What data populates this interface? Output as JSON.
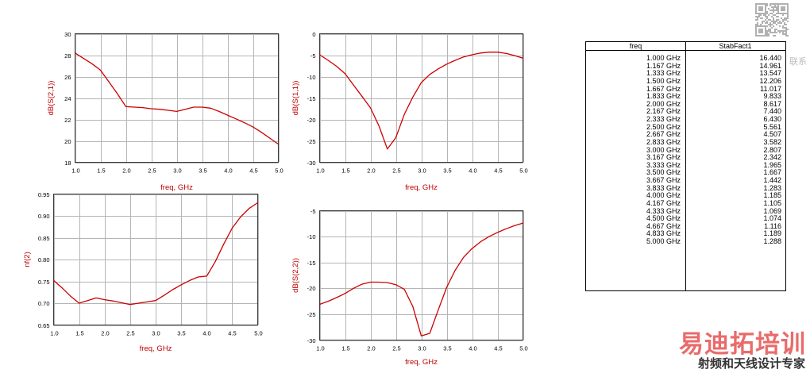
{
  "colors": {
    "trace": "#cc0000",
    "axis_label": "#c00000",
    "brand": "#e23a3a",
    "tagline": "#333333"
  },
  "chart_data": [
    {
      "type": "line",
      "xlabel": "freq, GHz",
      "ylabel": "dB(S(2,1))",
      "xlim": [
        1.0,
        5.0
      ],
      "ylim": [
        18,
        30
      ],
      "xticks": [
        "1.0",
        "1.5",
        "2.0",
        "2.5",
        "3.0",
        "3.5",
        "4.0",
        "4.5",
        "5.0"
      ],
      "yticks": [
        "30",
        "28",
        "26",
        "24",
        "22",
        "20",
        "18"
      ],
      "grid": true,
      "x": [
        1.0,
        1.167,
        1.333,
        1.5,
        1.667,
        1.833,
        2.0,
        2.167,
        2.333,
        2.5,
        2.667,
        2.833,
        3.0,
        3.167,
        3.333,
        3.5,
        3.667,
        3.833,
        4.0,
        4.167,
        4.333,
        4.5,
        4.667,
        4.833,
        5.0
      ],
      "y": [
        28.2,
        27.7,
        27.2,
        26.6,
        25.5,
        24.4,
        23.2,
        23.15,
        23.1,
        23.0,
        22.95,
        22.85,
        22.75,
        22.95,
        23.15,
        23.15,
        23.05,
        22.75,
        22.4,
        22.05,
        21.7,
        21.3,
        20.8,
        20.25,
        19.7
      ]
    },
    {
      "type": "line",
      "xlabel": "freq, GHz",
      "ylabel": "dB(S(1,1))",
      "xlim": [
        1.0,
        5.0
      ],
      "ylim": [
        -30,
        0
      ],
      "xticks": [
        "1.0",
        "1.5",
        "2.0",
        "2.5",
        "3.0",
        "3.5",
        "4.0",
        "4.5",
        "5.0"
      ],
      "yticks": [
        "0",
        "-5",
        "-10",
        "-15",
        "-20",
        "-25",
        "-30"
      ],
      "grid": true,
      "x": [
        1.0,
        1.167,
        1.333,
        1.5,
        1.667,
        1.833,
        2.0,
        2.167,
        2.333,
        2.5,
        2.667,
        2.833,
        3.0,
        3.167,
        3.333,
        3.5,
        3.667,
        3.833,
        4.0,
        4.167,
        4.333,
        4.5,
        4.667,
        4.833,
        5.0
      ],
      "y": [
        -4.9,
        -6.2,
        -7.6,
        -9.3,
        -12.0,
        -14.6,
        -17.3,
        -21.5,
        -26.9,
        -24.2,
        -18.8,
        -14.8,
        -11.4,
        -9.5,
        -8.2,
        -7.1,
        -6.2,
        -5.4,
        -4.9,
        -4.5,
        -4.3,
        -4.3,
        -4.6,
        -5.1,
        -5.7
      ]
    },
    {
      "type": "line",
      "xlabel": "freq, GHz",
      "ylabel": "nf(2)",
      "xlim": [
        1.0,
        5.0
      ],
      "ylim": [
        0.65,
        0.95
      ],
      "xticks": [
        "1.0",
        "1.5",
        "2.0",
        "2.5",
        "3.0",
        "3.5",
        "4.0",
        "4.5",
        "5.0"
      ],
      "yticks": [
        "0.95",
        "0.90",
        "0.85",
        "0.80",
        "0.75",
        "0.70",
        "0.65"
      ],
      "grid": true,
      "x": [
        1.0,
        1.167,
        1.333,
        1.5,
        1.667,
        1.833,
        2.0,
        2.167,
        2.333,
        2.5,
        2.667,
        2.833,
        3.0,
        3.167,
        3.333,
        3.5,
        3.667,
        3.833,
        4.0,
        4.167,
        4.333,
        4.5,
        4.667,
        4.833,
        5.0
      ],
      "y": [
        0.752,
        0.735,
        0.716,
        0.7,
        0.706,
        0.712,
        0.708,
        0.705,
        0.701,
        0.697,
        0.7,
        0.703,
        0.706,
        0.718,
        0.731,
        0.742,
        0.752,
        0.76,
        0.762,
        0.795,
        0.835,
        0.872,
        0.898,
        0.917,
        0.93
      ]
    },
    {
      "type": "line",
      "xlabel": "freq, GHz",
      "ylabel": "dB(S(2,2))",
      "xlim": [
        1.0,
        5.0
      ],
      "ylim": [
        -30,
        -5
      ],
      "xticks": [
        "1.0",
        "1.5",
        "2.0",
        "2.5",
        "3.0",
        "3.5",
        "4.0",
        "4.5",
        "5.0"
      ],
      "yticks": [
        "-5",
        "-10",
        "-15",
        "-20",
        "-25",
        "-30"
      ],
      "grid": true,
      "x": [
        1.0,
        1.167,
        1.333,
        1.5,
        1.667,
        1.833,
        2.0,
        2.167,
        2.333,
        2.5,
        2.667,
        2.833,
        3.0,
        3.167,
        3.333,
        3.5,
        3.667,
        3.833,
        4.0,
        4.167,
        4.333,
        4.5,
        4.667,
        4.833,
        5.0
      ],
      "y": [
        -23.1,
        -22.5,
        -21.8,
        -21.0,
        -20.0,
        -19.2,
        -18.8,
        -18.8,
        -18.9,
        -19.3,
        -20.2,
        -23.5,
        -29.2,
        -28.7,
        -24.2,
        -19.8,
        -16.5,
        -14.0,
        -12.3,
        -11.0,
        -10.0,
        -9.2,
        -8.5,
        -7.9,
        -7.4
      ]
    }
  ],
  "table": {
    "headers": [
      "freq",
      "StabFact1"
    ],
    "rows": [
      [
        "1.000 GHz",
        "16.440"
      ],
      [
        "1.167 GHz",
        "14.961"
      ],
      [
        "1.333 GHz",
        "13.547"
      ],
      [
        "1.500 GHz",
        "12.206"
      ],
      [
        "1.667 GHz",
        "11.017"
      ],
      [
        "1.833 GHz",
        "9.833"
      ],
      [
        "2.000 GHz",
        "8.617"
      ],
      [
        "2.167 GHz",
        "7.440"
      ],
      [
        "2.333 GHz",
        "6.430"
      ],
      [
        "2.500 GHz",
        "5.561"
      ],
      [
        "2.667 GHz",
        "4.507"
      ],
      [
        "2.833 GHz",
        "3.582"
      ],
      [
        "3.000 GHz",
        "2.807"
      ],
      [
        "3.167 GHz",
        "2.342"
      ],
      [
        "3.333 GHz",
        "1.965"
      ],
      [
        "3.500 GHz",
        "1.667"
      ],
      [
        "3.667 GHz",
        "1.442"
      ],
      [
        "3.833 GHz",
        "1.283"
      ],
      [
        "4.000 GHz",
        "1.185"
      ],
      [
        "4.167 GHz",
        "1.105"
      ],
      [
        "4.333 GHz",
        "1.069"
      ],
      [
        "4.500 GHz",
        "1.074"
      ],
      [
        "4.667 GHz",
        "1.116"
      ],
      [
        "4.833 GHz",
        "1.189"
      ],
      [
        "5.000 GHz",
        "1.288"
      ]
    ]
  },
  "watermark": {
    "brand": "易迪拓培训",
    "tagline": "射频和天线设计专家",
    "qr_caption": "联系"
  }
}
